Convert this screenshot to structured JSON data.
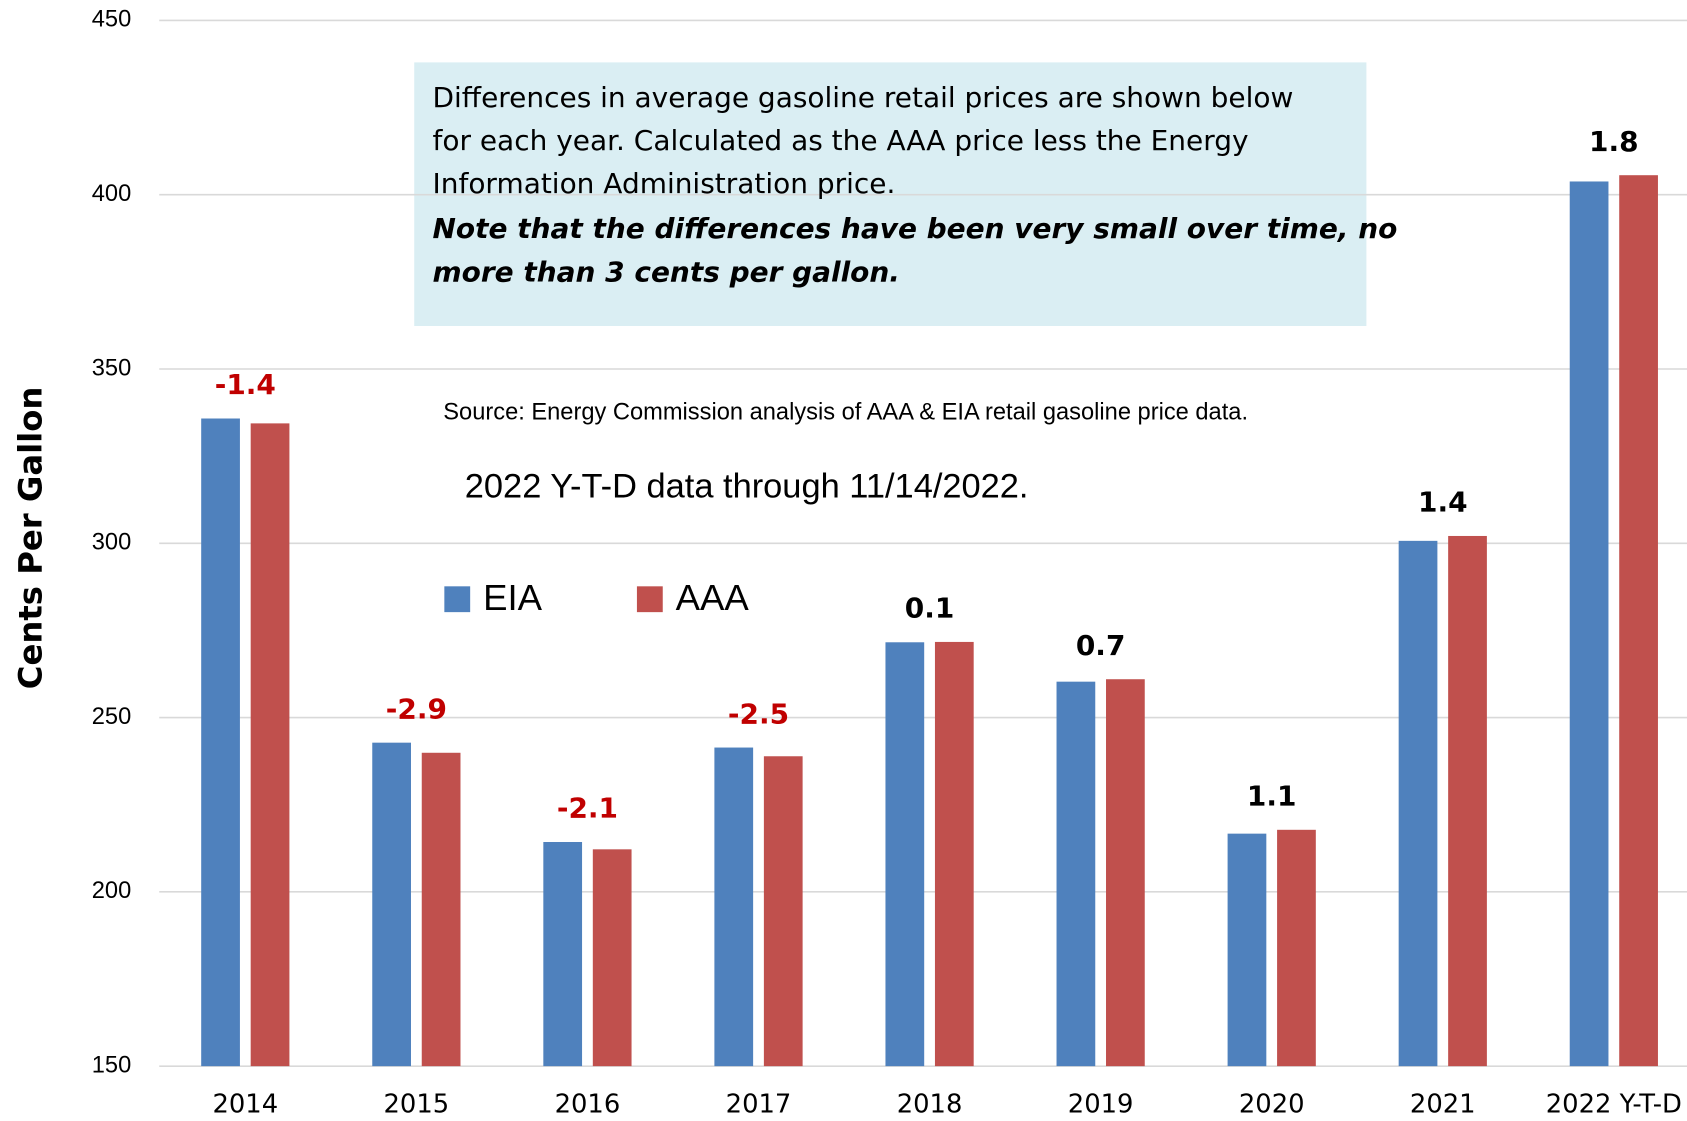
{
  "chart_data": {
    "type": "bar",
    "y_axis_label": "Cents Per Gallon",
    "categories": [
      "2014",
      "2015",
      "2016",
      "2017",
      "2018",
      "2019",
      "2020",
      "2021",
      "2022 Y-T-D"
    ],
    "series": [
      {
        "name": "EIA",
        "color": "#4f81bd",
        "values": [
          335.8,
          242.8,
          214.3,
          241.4,
          271.6,
          260.3,
          216.7,
          300.7,
          403.8
        ]
      },
      {
        "name": "AAA",
        "color": "#c0504d",
        "values": [
          334.4,
          239.9,
          212.2,
          238.9,
          271.7,
          261.0,
          217.8,
          302.1,
          405.6
        ]
      }
    ],
    "differences": [
      -1.4,
      -2.9,
      -2.1,
      -2.5,
      0.1,
      0.7,
      1.1,
      1.4,
      1.8
    ],
    "difference_colors": {
      "negative": "#c00000",
      "positive": "#000000"
    },
    "ylim": [
      150,
      450
    ],
    "yticks": [
      150,
      200,
      250,
      300,
      350,
      400,
      450
    ],
    "grid": true,
    "annotations": {
      "note_lines": [
        "Differences in average gasoline retail prices are shown below",
        "for each year. Calculated as the AAA price less the Energy",
        "Information Administration price."
      ],
      "note_emphasis_lines": [
        "Note that the differences have been very small over time, no",
        "more than 3 cents per gallon."
      ],
      "source": "Source: Energy Commission analysis of AAA & EIA retail gasoline price data.",
      "ytd_note": "2022 Y-T-D data through 11/14/2022."
    }
  }
}
